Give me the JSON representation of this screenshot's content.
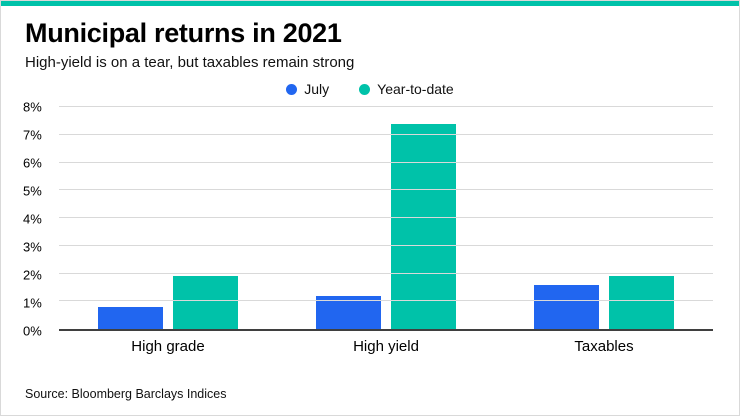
{
  "accent_color": "#00c2a9",
  "header": {
    "title": "Municipal returns in 2021",
    "subtitle": "High-yield is on a tear, but taxables remain strong"
  },
  "footer": {
    "source": "Source: Bloomberg Barclays Indices"
  },
  "chart_data": {
    "type": "bar",
    "title": "Municipal returns in 2021",
    "subtitle": "High-yield is on a tear, but taxables remain strong",
    "categories": [
      "High grade",
      "High yield",
      "Taxables"
    ],
    "series": [
      {
        "name": "July",
        "color": "#2166f0",
        "values": [
          0.8,
          1.2,
          1.6
        ]
      },
      {
        "name": "Year-to-date",
        "color": "#00c2a9",
        "values": [
          1.9,
          7.4,
          1.9
        ]
      }
    ],
    "xlabel": "",
    "ylabel": "",
    "ylim": [
      0,
      8
    ],
    "ytick_step": 1,
    "ytick_suffix": "%",
    "grid": "horizontal",
    "legend_position": "top",
    "source": "Bloomberg Barclays Indices"
  }
}
